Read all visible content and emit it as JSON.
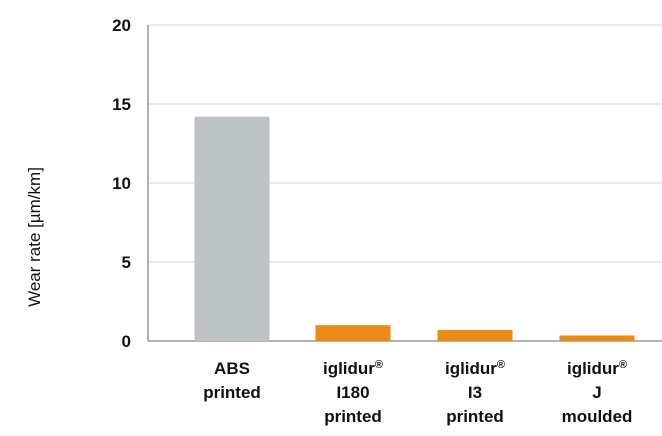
{
  "chart_data": {
    "type": "bar",
    "title": "",
    "xlabel": "",
    "ylabel": "Wear rate [µm/km]",
    "ylim": [
      0,
      20
    ],
    "yticks": [
      0,
      5,
      10,
      15,
      20
    ],
    "grid": true,
    "categories": [
      {
        "lines": [
          "ABS",
          "printed"
        ],
        "value": 14.2,
        "color": "#bec3c6"
      },
      {
        "lines": [
          "iglidur®",
          "I180",
          "printed"
        ],
        "value": 1.0,
        "color": "#ec8a16"
      },
      {
        "lines": [
          "iglidur®",
          "I3",
          "printed"
        ],
        "value": 0.7,
        "color": "#ec8a16"
      },
      {
        "lines": [
          "iglidur®",
          "J",
          "moulded"
        ],
        "value": 0.35,
        "color": "#ec8a16"
      }
    ],
    "colors": {
      "grid": "#e4e4e4",
      "axis": "#9a9a9a",
      "text": "#111111"
    }
  }
}
